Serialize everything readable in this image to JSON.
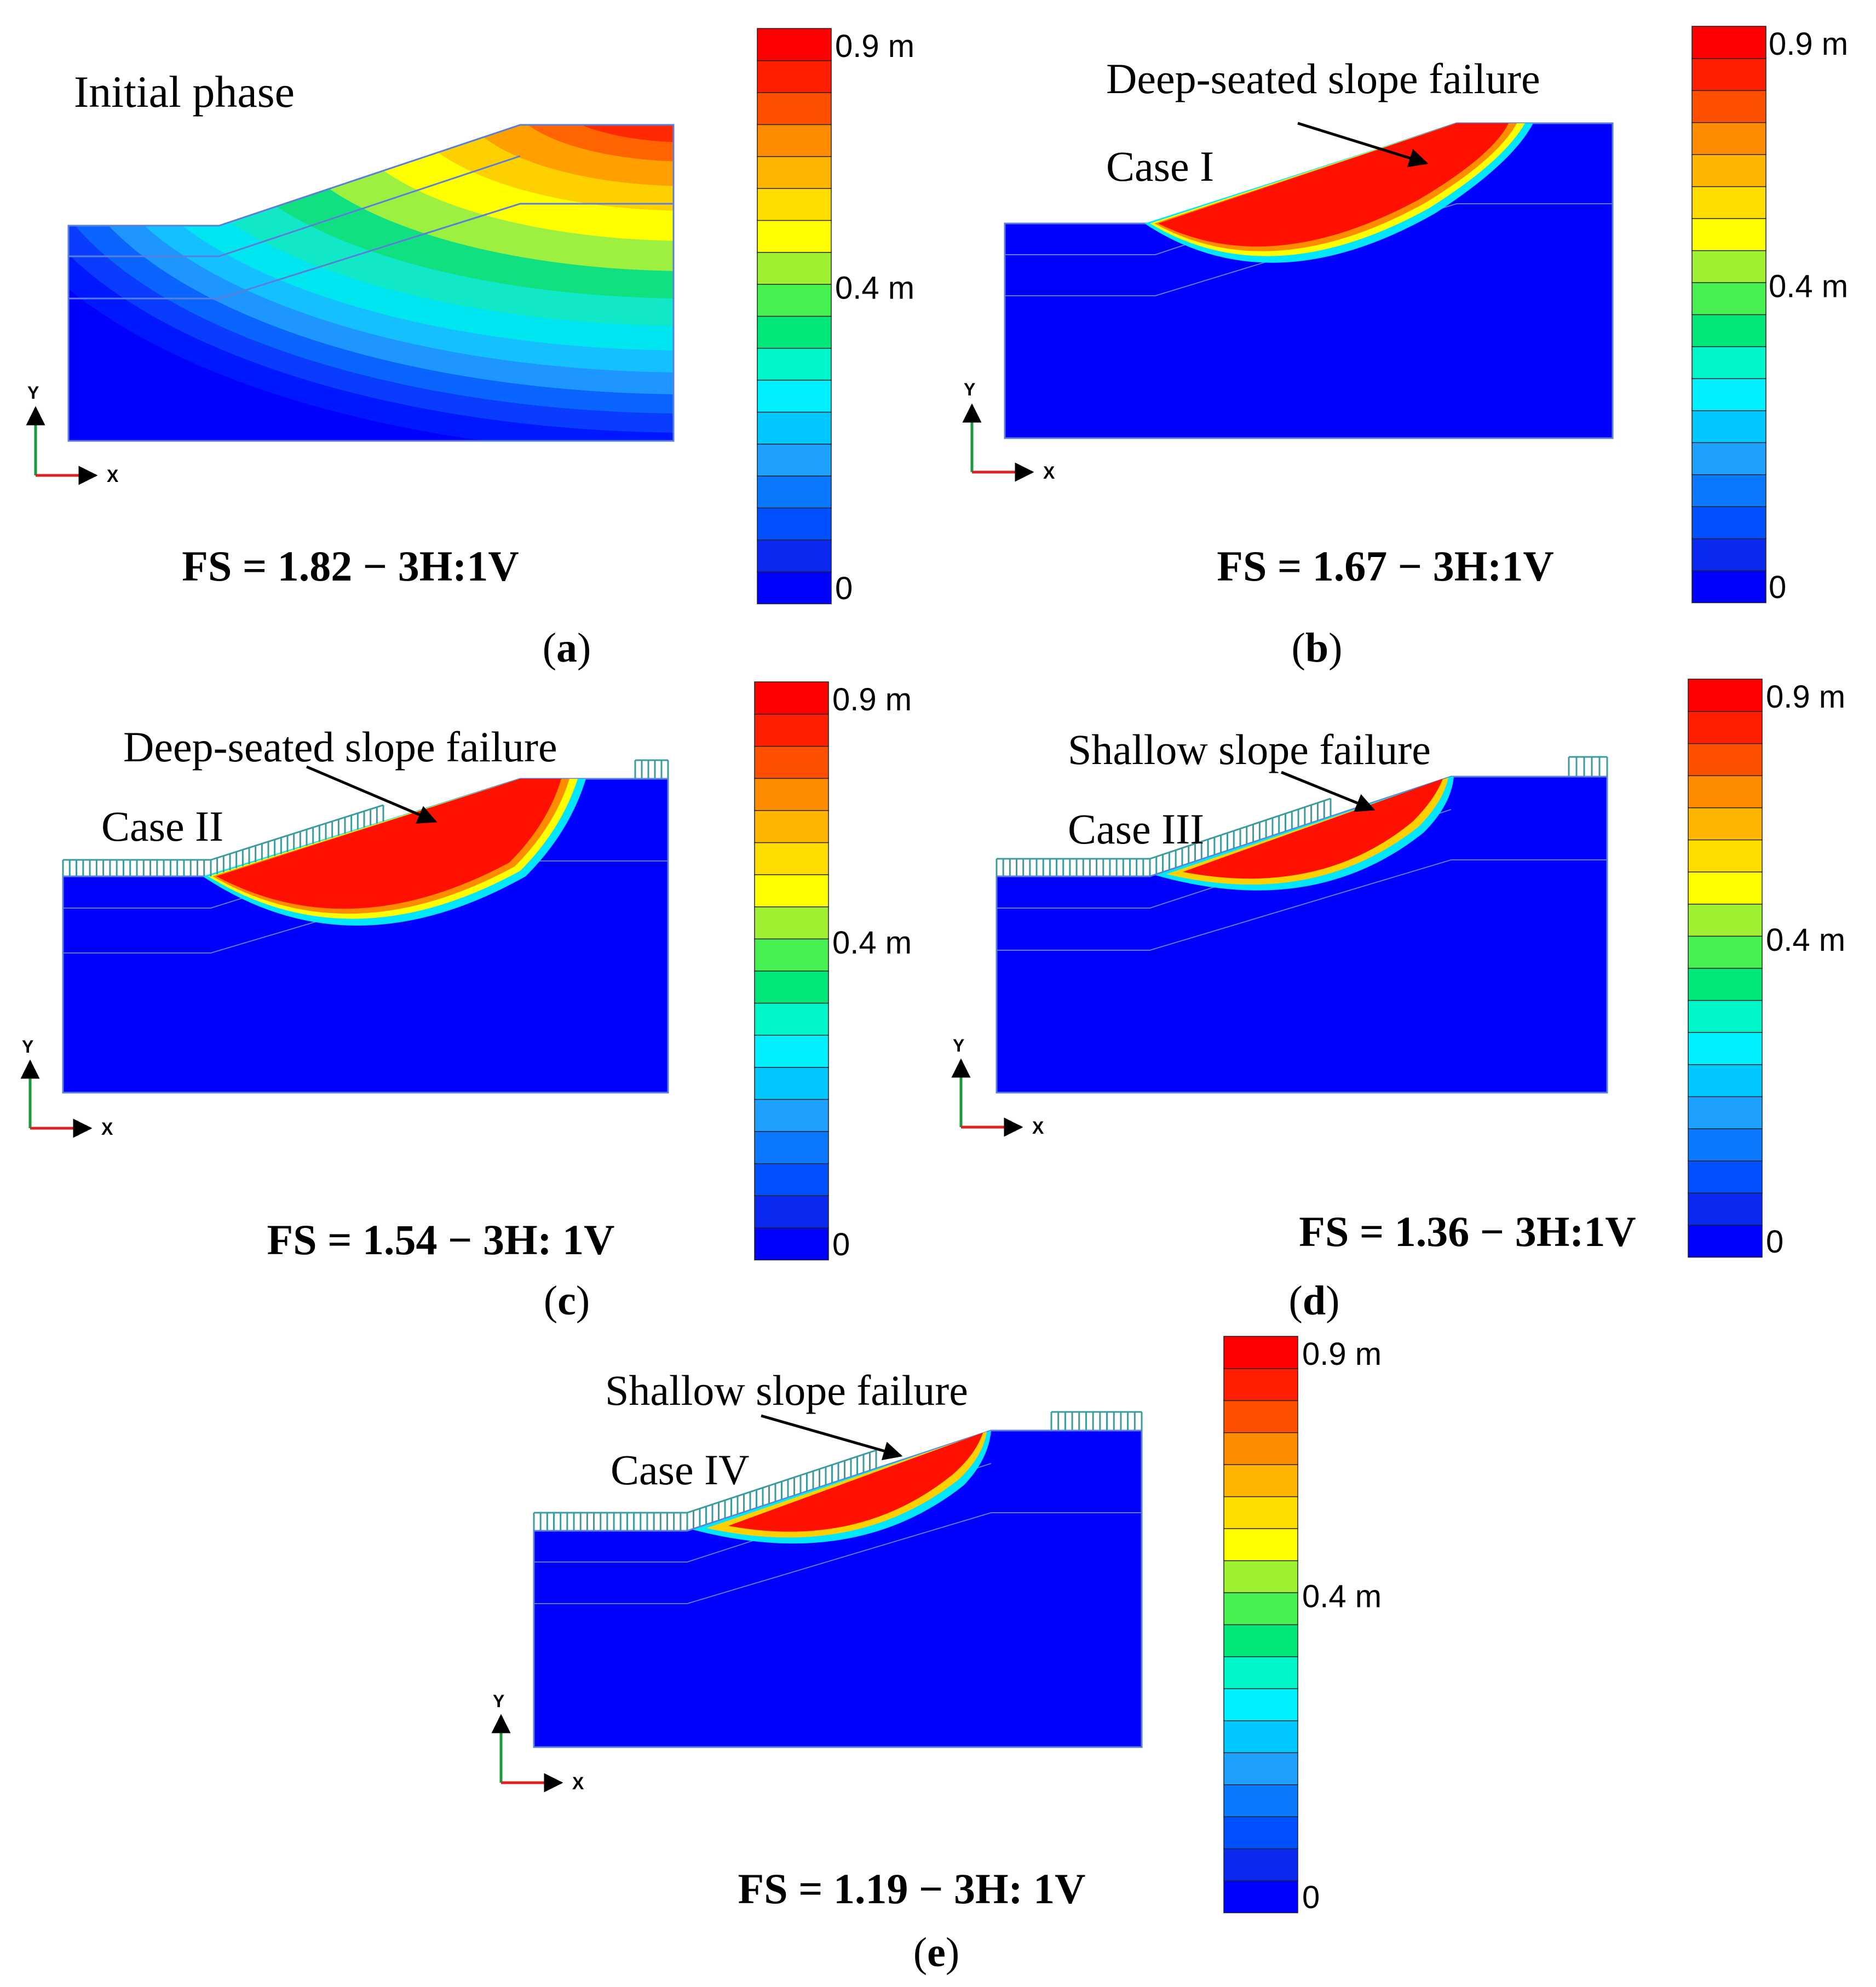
{
  "colorbar": {
    "max_label": "0.9 m",
    "mid_label": "0.4 m",
    "min_label": "0",
    "colors": [
      "#0000ff",
      "#0a28f0",
      "#0050ff",
      "#0a78ff",
      "#1ea0ff",
      "#00c8ff",
      "#00f0ff",
      "#00f5c8",
      "#00e678",
      "#46f050",
      "#a0f032",
      "#ffff00",
      "#ffdc00",
      "#ffb400",
      "#ff8c00",
      "#ff5000",
      "#ff1e00",
      "#ff0000"
    ]
  },
  "axes": {
    "y_label": "Y",
    "x_label": "X"
  },
  "panels": [
    {
      "id": "a",
      "letter": "a",
      "fs_caption": "FS = 1.82 − 3H:1V",
      "title": "Initial phase",
      "case_label": "",
      "failure_label": "",
      "failure_type": "initial",
      "load": "none"
    },
    {
      "id": "b",
      "letter": "b",
      "fs_caption": "FS = 1.67 − 3H:1V",
      "title": "",
      "case_label": "Case I",
      "failure_label": "Deep-seated slope failure",
      "failure_type": "deep",
      "load": "none"
    },
    {
      "id": "c",
      "letter": "c",
      "fs_caption": "FS = 1.54 − 3H: 1V",
      "title": "",
      "case_label": "Case II",
      "failure_label": "Deep-seated slope failure",
      "failure_type": "deep",
      "load": "partial"
    },
    {
      "id": "d",
      "letter": "d",
      "fs_caption": "FS = 1.36 − 3H:1V",
      "title": "",
      "case_label": "Case III",
      "failure_label": "Shallow slope failure",
      "failure_type": "shallow",
      "load": "partial"
    },
    {
      "id": "e",
      "letter": "e",
      "fs_caption": "FS = 1.19 − 3H: 1V",
      "title": "",
      "case_label": "Case IV",
      "failure_label": "Shallow slope failure",
      "failure_type": "shallow",
      "load": "partial"
    }
  ],
  "palette": {
    "soil": "#0000ff",
    "outline": "#5a7fd8",
    "load": "#3a9c9c",
    "failure_red": "#ff1000",
    "axis_x": "#e02020",
    "axis_y": "#1a9a3a"
  }
}
